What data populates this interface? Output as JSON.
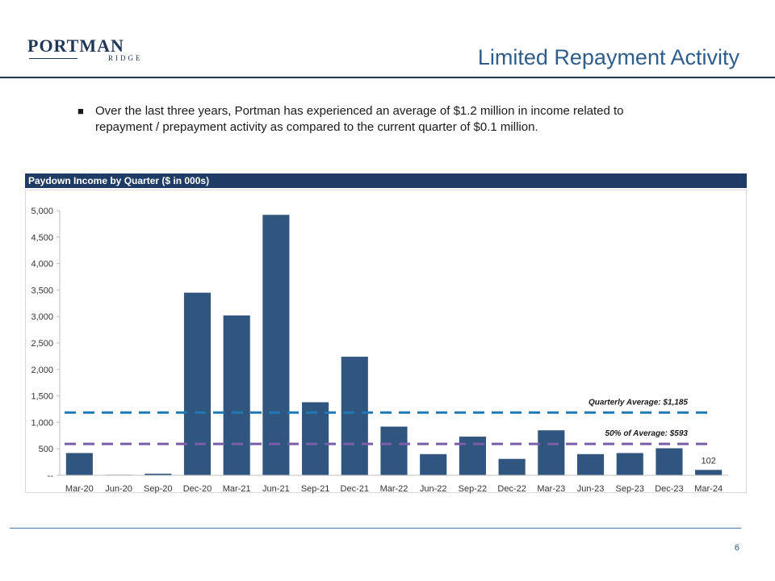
{
  "header": {
    "logo_main": "PORTMAN",
    "logo_sub": "RIDGE",
    "title": "Limited Repayment Activity"
  },
  "bullets": [
    "Over the last three years, Portman has experienced an average of $1.2 million in income related to repayment / prepayment activity as compared to the current quarter of $0.1 million."
  ],
  "footer": {
    "page_number": "6"
  },
  "colors": {
    "bar": "#30557f",
    "avg_line": "#1f78b4",
    "half_avg_line": "#7a5ea8",
    "header_band": "#1f3c66"
  },
  "chart_data": {
    "type": "bar",
    "title": "Paydown Income by Quarter ($ in 000s)",
    "xlabel": "",
    "ylabel": "",
    "ylim": [
      0,
      5000
    ],
    "yticks": [
      0,
      500,
      1000,
      1500,
      2000,
      2500,
      3000,
      3500,
      4000,
      4500,
      5000
    ],
    "ytick_labels": [
      "--",
      "500",
      "1,000",
      "1,500",
      "2,000",
      "2,500",
      "3,000",
      "3,500",
      "4,000",
      "4,500",
      "5,000"
    ],
    "categories": [
      "Mar-20",
      "Jun-20",
      "Sep-20",
      "Dec-20",
      "Mar-21",
      "Jun-21",
      "Sep-21",
      "Dec-21",
      "Mar-22",
      "Jun-22",
      "Sep-22",
      "Dec-22",
      "Mar-23",
      "Jun-23",
      "Sep-23",
      "Dec-23",
      "Mar-24"
    ],
    "values": [
      420,
      10,
      30,
      3450,
      3020,
      4920,
      1380,
      2240,
      920,
      400,
      730,
      310,
      850,
      400,
      420,
      510,
      102
    ],
    "data_labels": [
      {
        "index": 16,
        "text": "102"
      }
    ],
    "reference_lines": [
      {
        "name": "quarterly-average",
        "value": 1185,
        "label": "Quarterly Average: $1,185",
        "style": "dashed"
      },
      {
        "name": "half-average",
        "value": 593,
        "label": "50% of Average: $593",
        "style": "dashed"
      }
    ],
    "grid": false,
    "legend": "none"
  }
}
